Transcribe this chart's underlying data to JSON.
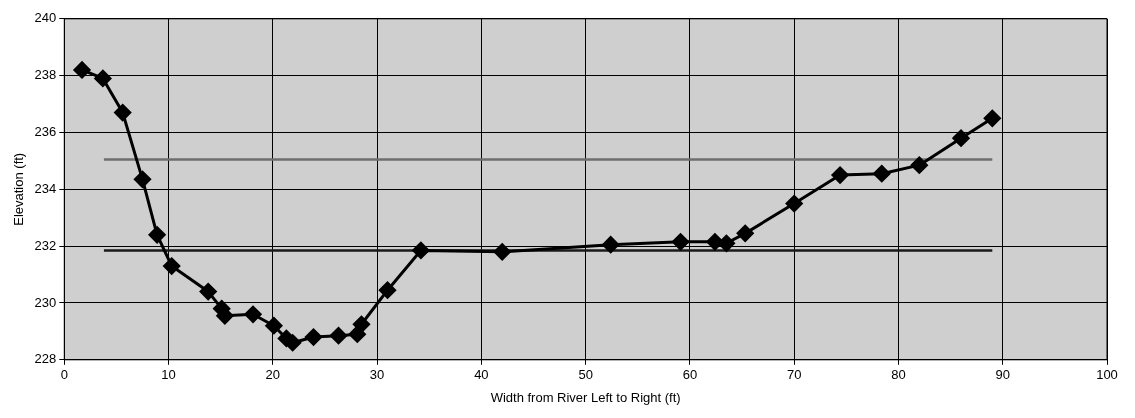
{
  "chart_data": {
    "type": "line",
    "xlabel": "Width from River Left to Right (ft)",
    "ylabel": "Elevation (ft)",
    "xlim": [
      0,
      100
    ],
    "xticks": [
      0,
      10,
      20,
      30,
      40,
      50,
      60,
      70,
      80,
      90,
      100
    ],
    "ylim": [
      228,
      240
    ],
    "yticks": [
      228,
      230,
      232,
      234,
      236,
      238,
      240
    ],
    "grid": true,
    "legend": false,
    "series": [
      {
        "color": "#000000",
        "marker": "diamond",
        "x": [
          1.7,
          3.7,
          5.6,
          7.5,
          8.9,
          10.3,
          13.8,
          15.1,
          15.4,
          18.1,
          20.1,
          21.3,
          21.9,
          23.9,
          26.3,
          28.1,
          28.5,
          31.0,
          34.2,
          42.0,
          52.4,
          59.1,
          62.4,
          63.5,
          65.3,
          70.0,
          74.4,
          78.4,
          82.0,
          86.0,
          89.0
        ],
        "values": [
          238.2,
          237.9,
          236.7,
          234.35,
          232.4,
          231.3,
          230.4,
          229.8,
          229.55,
          229.6,
          229.2,
          228.75,
          228.6,
          228.8,
          228.85,
          228.9,
          229.25,
          230.45,
          231.85,
          231.8,
          232.05,
          232.15,
          232.15,
          232.1,
          232.45,
          233.5,
          234.5,
          234.55,
          234.85,
          235.8,
          236.5
        ]
      },
      {
        "color": "#6e6e6e",
        "marker": "none",
        "x": [
          3.8,
          89
        ],
        "values": [
          235.05,
          235.05
        ]
      },
      {
        "color": "#1a1a1a",
        "marker": "none",
        "x": [
          3.8,
          89
        ],
        "values": [
          231.85,
          231.85
        ]
      }
    ]
  }
}
